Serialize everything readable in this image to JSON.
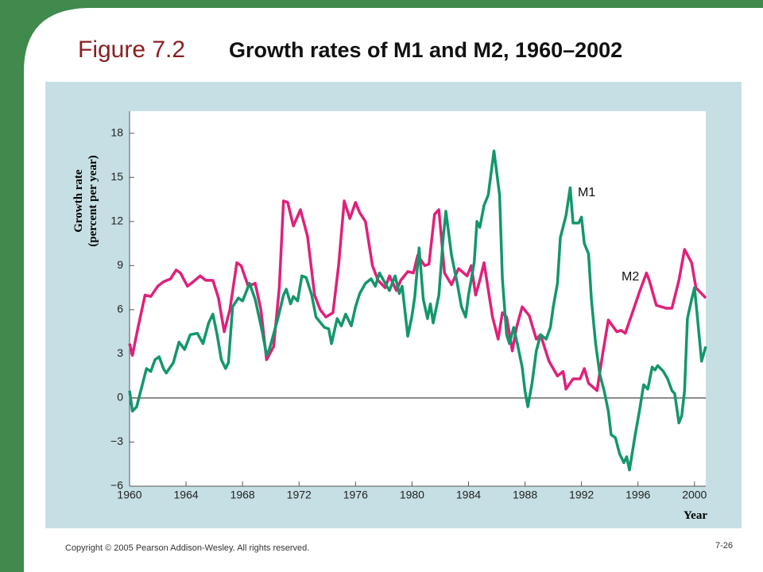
{
  "figure_label": "Figure 7.2",
  "footer": {
    "copyright": "Copyright © 2005 Pearson Addison-Wesley. All rights reserved.",
    "page": "7-26"
  },
  "chart_data": {
    "type": "line",
    "title": "Growth rates of M1 and M2, 1960–2002",
    "ylabel": [
      "Growth rate",
      "(percent per year)"
    ],
    "xlabel": "Year",
    "annotations": [
      "M1",
      "M2"
    ],
    "xlim": [
      1960,
      2000.8
    ],
    "ylim": [
      -6,
      19.5
    ],
    "xticks": [
      1960,
      1964,
      1968,
      1972,
      1976,
      1980,
      1984,
      1988,
      1992,
      1996,
      2000
    ],
    "yticks": [
      18,
      15,
      12,
      9,
      6,
      3,
      0,
      {
        "value": -3,
        "label": "−3"
      },
      {
        "value": -6,
        "label": "−6"
      }
    ],
    "zero_line": true,
    "series": [
      {
        "name": "M1",
        "color": "#13976a",
        "x": [
          1960,
          1960.2,
          1960.5,
          1961.2,
          1961.5,
          1961.8,
          1962.1,
          1962.4,
          1962.6,
          1963.1,
          1963.5,
          1963.9,
          1964.3,
          1964.8,
          1965.2,
          1965.6,
          1965.9,
          1966.2,
          1966.5,
          1966.8,
          1967,
          1967.3,
          1967.7,
          1968,
          1968.5,
          1968.9,
          1969.4,
          1969.7,
          1969.9,
          1970.5,
          1970.9,
          1971.1,
          1971.4,
          1971.6,
          1971.9,
          1972.2,
          1972.5,
          1972.9,
          1973.2,
          1973.8,
          1974.1,
          1974.3,
          1974.7,
          1975,
          1975.3,
          1975.7,
          1976,
          1976.3,
          1976.7,
          1977.1,
          1977.4,
          1977.7,
          1978.1,
          1978.4,
          1978.8,
          1979.1,
          1979.3,
          1979.7,
          1980,
          1980.2,
          1980.5,
          1980.8,
          1981.1,
          1981.3,
          1981.5,
          1981.9,
          1982.2,
          1982.4,
          1982.8,
          1983.2,
          1983.5,
          1983.8,
          1984,
          1984.4,
          1984.6,
          1984.8,
          1985.1,
          1985.4,
          1985.8,
          1986.2,
          1986.4,
          1986.7,
          1986.9,
          1987.2,
          1987.5,
          1987.8,
          1988,
          1988.2,
          1988.5,
          1988.8,
          1989.1,
          1989.5,
          1989.8,
          1990,
          1990.3,
          1990.5,
          1990.9,
          1991.2,
          1991.4,
          1991.8,
          1992,
          1992.2,
          1992.5,
          1992.7,
          1993,
          1993.3,
          1993.6,
          1993.9,
          1994.1,
          1994.4,
          1994.7,
          1995,
          1995.2,
          1995.4,
          1995.8,
          1996.1,
          1996.4,
          1996.7,
          1997,
          1997.2,
          1997.4,
          1997.8,
          1998.1,
          1998.4,
          1998.6,
          1998.9,
          1999.1,
          1999.3,
          1999.5,
          1999.8,
          2000,
          2000.2,
          2000.5,
          2000.8
        ],
        "values": [
          0.5,
          -0.9,
          -0.6,
          2.0,
          1.8,
          2.6,
          2.8,
          2.0,
          1.7,
          2.4,
          3.8,
          3.3,
          4.3,
          4.4,
          3.7,
          5.1,
          5.7,
          4.3,
          2.6,
          2.0,
          2.4,
          6.2,
          6.8,
          6.6,
          7.8,
          6.7,
          4.5,
          2.9,
          3.3,
          5.4,
          7.0,
          7.4,
          6.4,
          6.9,
          6.6,
          8.3,
          8.2,
          7.0,
          5.5,
          4.8,
          4.7,
          3.7,
          5.4,
          4.9,
          5.7,
          4.9,
          6.2,
          7.1,
          7.8,
          8.1,
          7.6,
          8.5,
          7.8,
          7.3,
          8.3,
          7.1,
          7.6,
          4.2,
          5.6,
          6.9,
          10.2,
          6.7,
          5.4,
          6.4,
          5.1,
          7.0,
          10.8,
          12.7,
          9.7,
          7.8,
          6.2,
          5.5,
          7.0,
          9.2,
          12.0,
          11.6,
          13.1,
          13.8,
          16.8,
          13.8,
          8.1,
          4.3,
          3.7,
          4.8,
          3.5,
          2.1,
          0.5,
          -0.6,
          1.0,
          3.2,
          4.3,
          4.0,
          4.8,
          6.2,
          7.8,
          10.9,
          12.4,
          14.3,
          11.9,
          11.9,
          12.3,
          10.5,
          9.8,
          6.7,
          3.7,
          1.6,
          0.5,
          -0.9,
          -2.5,
          -2.7,
          -3.8,
          -4.4,
          -4.0,
          -4.9,
          -2.5,
          -0.9,
          0.9,
          0.6,
          2.1,
          1.9,
          2.2,
          1.8,
          1.3,
          0.5,
          0.3,
          -1.7,
          -1.2,
          0.5,
          5.4,
          6.7,
          7.5,
          5.6,
          2.5,
          3.5
        ]
      },
      {
        "name": "M2",
        "color": "#e0207a",
        "x": [
          1960,
          1960.2,
          1960.6,
          1961.1,
          1961.5,
          1962,
          1962.4,
          1962.9,
          1963.3,
          1963.6,
          1964.1,
          1964.5,
          1965,
          1965.4,
          1965.9,
          1966.3,
          1966.7,
          1967.1,
          1967.6,
          1967.9,
          1968.4,
          1968.9,
          1969.3,
          1969.7,
          1970.2,
          1970.6,
          1970.9,
          1971.2,
          1971.6,
          1972.1,
          1972.6,
          1973.1,
          1973.5,
          1973.9,
          1974.4,
          1974.8,
          1975.2,
          1975.6,
          1976,
          1976.3,
          1976.7,
          1977.2,
          1977.6,
          1978.1,
          1978.4,
          1978.9,
          1979.2,
          1979.7,
          1980.1,
          1980.4,
          1980.9,
          1981.2,
          1981.6,
          1981.9,
          1982.3,
          1982.8,
          1983.3,
          1983.9,
          1984.2,
          1984.5,
          1984.8,
          1985.1,
          1985.7,
          1986.1,
          1986.4,
          1986.7,
          1987.1,
          1987.4,
          1987.8,
          1988.3,
          1988.8,
          1989.1,
          1989.4,
          1989.7,
          1990.3,
          1990.7,
          1990.9,
          1991.4,
          1991.9,
          1992.2,
          1992.5,
          1993.1,
          1993.5,
          1993.9,
          1994.5,
          1994.8,
          1995.1,
          1995.5,
          1996.1,
          1996.6,
          1996.8,
          1997.3,
          1998,
          1998.4,
          1998.9,
          1999.3,
          1999.8,
          2000.1,
          2000.4,
          2000.8
        ],
        "values": [
          3.7,
          2.9,
          4.8,
          7.0,
          6.9,
          7.6,
          7.9,
          8.1,
          8.7,
          8.5,
          7.6,
          7.9,
          8.3,
          8.0,
          8.0,
          6.8,
          4.5,
          6.0,
          9.2,
          9.0,
          7.6,
          7.8,
          6.0,
          2.6,
          3.5,
          7.5,
          13.4,
          13.3,
          11.7,
          12.8,
          11.0,
          7.0,
          6.0,
          5.5,
          5.8,
          9.0,
          13.4,
          12.2,
          13.3,
          12.6,
          12.0,
          9.0,
          8.0,
          7.5,
          8.3,
          7.3,
          8.0,
          8.6,
          8.5,
          9.7,
          9.0,
          9.1,
          12.5,
          12.8,
          8.5,
          7.7,
          8.8,
          8.3,
          9.0,
          7.0,
          8.0,
          9.2,
          5.5,
          4.0,
          5.8,
          5.5,
          3.2,
          4.8,
          6.2,
          5.6,
          4.0,
          4.3,
          3.4,
          2.5,
          1.5,
          1.8,
          0.6,
          1.3,
          1.3,
          2.0,
          1.0,
          0.5,
          3.0,
          5.3,
          4.5,
          4.6,
          4.4,
          5.5,
          7.2,
          8.5,
          8.0,
          6.3,
          6.1,
          6.1,
          8.0,
          10.1,
          9.2,
          7.5,
          7.2,
          6.8
        ]
      }
    ]
  }
}
